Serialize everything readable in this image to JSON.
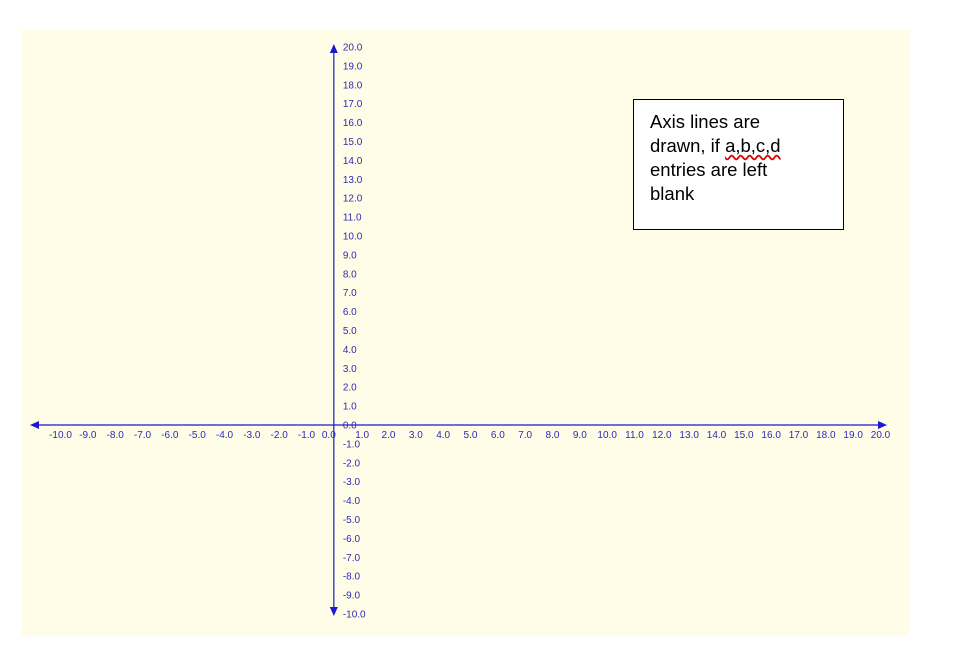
{
  "chart_data": {
    "type": "line",
    "title": "",
    "xlabel": "",
    "ylabel": "",
    "xlim": [
      -10.0,
      20.0
    ],
    "ylim": [
      -10.0,
      20.0
    ],
    "x_ticks": [
      "-10.0",
      "-9.0",
      "-8.0",
      "-7.0",
      "-6.0",
      "-5.0",
      "-4.0",
      "-3.0",
      "-2.0",
      "-1.0",
      "0.0",
      "1.0",
      "2.0",
      "3.0",
      "4.0",
      "5.0",
      "6.0",
      "7.0",
      "8.0",
      "9.0",
      "10.0",
      "11.0",
      "12.0",
      "13.0",
      "14.0",
      "15.0",
      "16.0",
      "17.0",
      "18.0",
      "19.0",
      "20.0"
    ],
    "y_ticks": [
      "-10.0",
      "-9.0",
      "-8.0",
      "-7.0",
      "-6.0",
      "-5.0",
      "-4.0",
      "-3.0",
      "-2.0",
      "-1.0",
      "0.0",
      "1.0",
      "2.0",
      "3.0",
      "4.0",
      "5.0",
      "6.0",
      "7.0",
      "8.0",
      "9.0",
      "10.0",
      "11.0",
      "12.0",
      "13.0",
      "14.0",
      "15.0",
      "16.0",
      "17.0",
      "18.0",
      "19.0",
      "20.0"
    ],
    "series": [],
    "grid": false,
    "axis_color": "#1a1acc",
    "background_color": "#fffde7"
  },
  "annotation": {
    "line1": "Axis lines are",
    "line2_prefix": "drawn, if ",
    "line2_squiggle": "a,b,c,d",
    "line3": "entries are left",
    "line4": "blank"
  }
}
